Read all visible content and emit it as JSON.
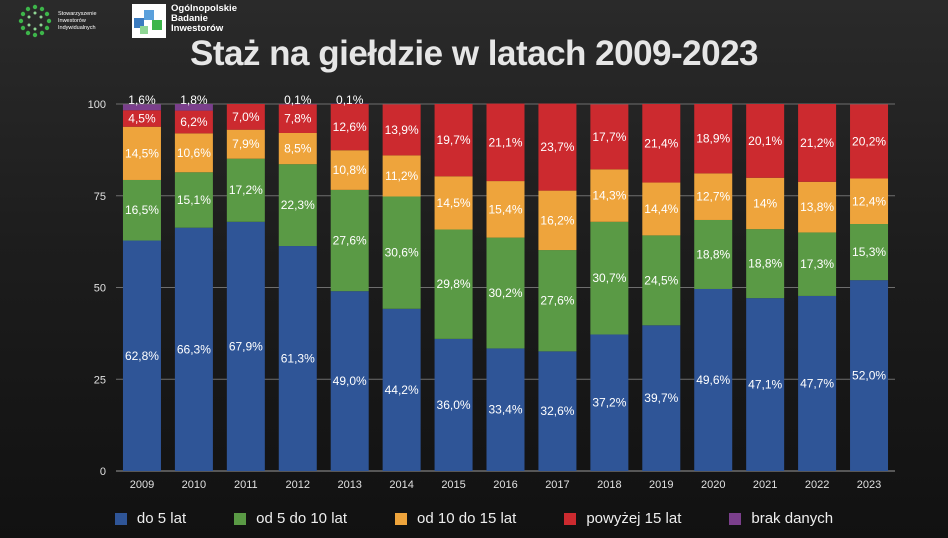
{
  "header": {
    "org1_name": "Stowarzyszenie Inwestorów Indywidualnych",
    "org2_line1": "Ogólnopolskie",
    "org2_line2": "Badanie",
    "org2_line3": "Inwestorów"
  },
  "chart_data": {
    "type": "bar",
    "stacked": true,
    "title": "Staż na giełdzie w latach 2009-2023",
    "xlabel": "",
    "ylabel": "",
    "ylim": [
      0,
      100
    ],
    "yticks": [
      0,
      25,
      50,
      75,
      100
    ],
    "grid": true,
    "legend_position": "bottom",
    "categories": [
      "2009",
      "2010",
      "2011",
      "2012",
      "2013",
      "2014",
      "2015",
      "2016",
      "2017",
      "2018",
      "2019",
      "2020",
      "2021",
      "2022",
      "2023"
    ],
    "series": [
      {
        "name": "do 5 lat",
        "color": "#2f5597",
        "values": [
          62.8,
          66.3,
          67.9,
          61.3,
          49.0,
          44.2,
          36.0,
          33.4,
          32.6,
          37.2,
          39.7,
          49.6,
          47.1,
          47.7,
          52.0
        ],
        "labels": [
          "62,8%",
          "66,3%",
          "67,9%",
          "61,3%",
          "49,0%",
          "44,2%",
          "36,0%",
          "33,4%",
          "32,6%",
          "37,2%",
          "39,7%",
          "49,6%",
          "47,1%",
          "47,7%",
          "52,0%"
        ]
      },
      {
        "name": "od 5 do 10 lat",
        "color": "#5a9a45",
        "values": [
          16.5,
          15.1,
          17.2,
          22.3,
          27.6,
          30.6,
          29.8,
          30.2,
          27.6,
          30.7,
          24.5,
          18.8,
          18.8,
          17.3,
          15.3
        ],
        "labels": [
          "16,5%",
          "15,1%",
          "17,2%",
          "22,3%",
          "27,6%",
          "30,6%",
          "29,8%",
          "30,2%",
          "27,6%",
          "30,7%",
          "24,5%",
          "18,8%",
          "18,8%",
          "17,3%",
          "15,3%"
        ]
      },
      {
        "name": "od 10 do 15 lat",
        "color": "#eea43c",
        "values": [
          14.5,
          10.6,
          7.9,
          8.5,
          10.8,
          11.2,
          14.5,
          15.4,
          16.2,
          14.3,
          14.4,
          12.7,
          14.0,
          13.8,
          12.4
        ],
        "labels": [
          "14,5%",
          "10,6%",
          "7,9%",
          "8,5%",
          "10,8%",
          "11,2%",
          "14,5%",
          "15,4%",
          "16,2%",
          "14,3%",
          "14,4%",
          "12,7%",
          "14%",
          "13,8%",
          "12,4%"
        ]
      },
      {
        "name": "powyżej 15 lat",
        "color": "#cc2a2f",
        "values": [
          4.5,
          6.2,
          7.0,
          7.8,
          12.6,
          13.9,
          19.7,
          21.1,
          23.7,
          17.7,
          21.4,
          18.9,
          20.1,
          21.2,
          20.2
        ],
        "labels": [
          "4,5%",
          "6,2%",
          "7,0%",
          "7,8%",
          "12,6%",
          "13,9%",
          "19,7%",
          "21,1%",
          "23,7%",
          "17,7%",
          "21,4%",
          "18,9%",
          "20,1%",
          "21,2%",
          "20,2%"
        ]
      },
      {
        "name": "brak danych",
        "color": "#7b3f8c",
        "values": [
          1.6,
          1.8,
          0,
          0.1,
          0.1,
          0,
          0,
          0,
          0,
          0,
          0,
          0,
          0,
          0,
          0
        ],
        "labels": [
          "1,6%",
          "1,8%",
          "",
          "0,1%",
          "0,1%",
          "",
          "",
          "",
          "",
          "",
          "",
          "",
          "",
          "",
          ""
        ]
      }
    ]
  }
}
